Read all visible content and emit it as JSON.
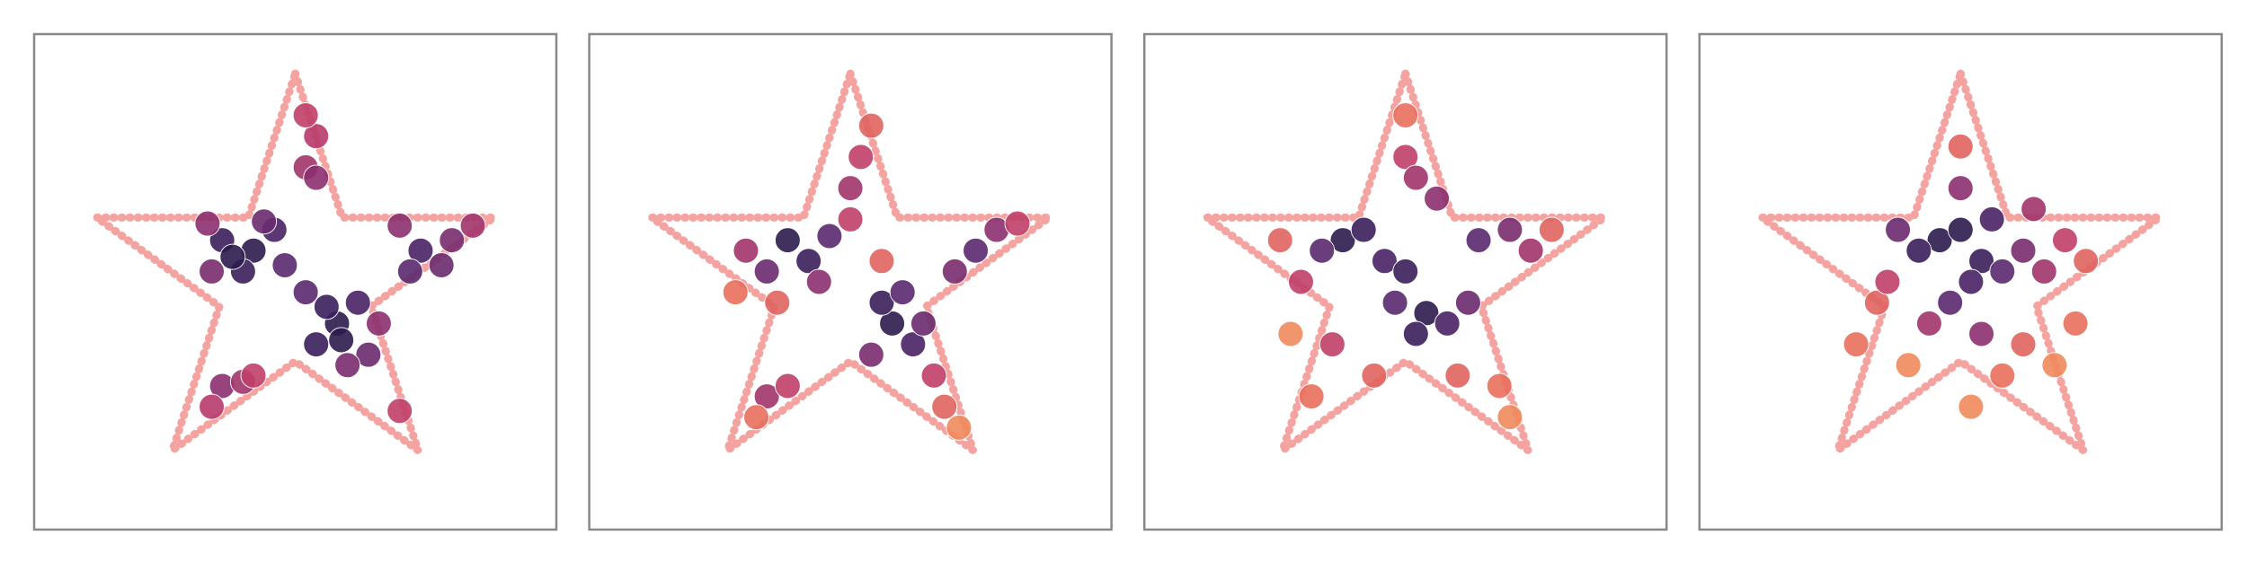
{
  "chart_data": [
    {
      "type": "scatter",
      "xlim": [
        -1.25,
        1.25
      ],
      "ylim": [
        -1.19,
        1.19
      ],
      "outline": {
        "color": "#f4a3a0",
        "x": [
          0,
          0.2245,
          0.951,
          0.3633,
          0.5878,
          0,
          -0.5878,
          -0.3633,
          -0.951,
          -0.2245
        ],
        "y": [
          1,
          0.309,
          0.309,
          -0.118,
          -0.809,
          -0.382,
          -0.809,
          -0.118,
          0.309,
          0.309
        ]
      },
      "x": [
        -0.35,
        -0.2,
        -0.1,
        -0.4,
        -0.25,
        -0.05,
        -0.42,
        -0.15,
        -0.3,
        0.2,
        0.1,
        0.3,
        0.35,
        0.05,
        0.25,
        0.15,
        0.4,
        0.22,
        0.6,
        0.75,
        0.55,
        0.85,
        0.7,
        0.5,
        -0.35,
        -0.25,
        -0.4,
        -0.2,
        0.05,
        0.1,
        0.05,
        0.1,
        0.5
      ],
      "y": [
        0.2,
        0.15,
        0.25,
        0.05,
        0.05,
        0.08,
        0.28,
        0.29,
        0.12,
        -0.2,
        -0.3,
        -0.1,
        -0.35,
        -0.05,
        -0.4,
        -0.12,
        -0.2,
        -0.28,
        0.15,
        0.2,
        0.05,
        0.27,
        0.08,
        0.27,
        -0.5,
        -0.48,
        -0.6,
        -0.45,
        0.55,
        0.7,
        0.8,
        0.5,
        -0.62
      ],
      "colors": [
        "#3a1f5c",
        "#2d1b4e",
        "#4a2366",
        "#7a2c6e",
        "#3a1f5c",
        "#5a2a6e",
        "#8c2f6f",
        "#6b2b6e",
        "#2d1b4e",
        "#2d1b4e",
        "#3a1f5c",
        "#4a2366",
        "#6b2b6e",
        "#5a2a6e",
        "#7a2c6e",
        "#3a1f5c",
        "#8c2f6f",
        "#2d1b4e",
        "#4a2366",
        "#7a2c6e",
        "#5a2a6e",
        "#a3356c",
        "#6b2b6e",
        "#8c2f6f",
        "#8c2f6f",
        "#a3356c",
        "#b83b6b",
        "#c0406a",
        "#a3356c",
        "#b83b6b",
        "#c0406a",
        "#8c2f6f",
        "#c0406a"
      ]
    },
    {
      "type": "scatter",
      "xlim": [
        -1.25,
        1.25
      ],
      "ylim": [
        -1.19,
        1.19
      ],
      "outline": {
        "color": "#f4a3a0",
        "x": [
          0,
          0.2245,
          0.951,
          0.3633,
          0.5878,
          0,
          -0.5878,
          -0.3633,
          -0.951,
          -0.2245
        ],
        "y": [
          1,
          0.309,
          0.309,
          -0.118,
          -0.809,
          -0.382,
          -0.809,
          -0.118,
          0.309,
          0.309
        ]
      },
      "x": [
        -0.3,
        -0.2,
        -0.1,
        -0.4,
        -0.5,
        -0.15,
        -0.35,
        0.0,
        0.2,
        0.15,
        0.3,
        0.25,
        0.1,
        0.35,
        0.4,
        0.6,
        0.7,
        0.5,
        0.8,
        0.05,
        0.0,
        0.1,
        -0.4,
        -0.3,
        -0.45,
        0.45,
        0.52,
        -0.55,
        0.15
      ],
      "y": [
        0.2,
        0.1,
        0.22,
        0.05,
        0.15,
        0.0,
        -0.1,
        0.3,
        -0.2,
        -0.1,
        -0.3,
        -0.05,
        -0.35,
        -0.2,
        -0.45,
        0.15,
        0.25,
        0.05,
        0.28,
        0.6,
        0.45,
        0.75,
        -0.55,
        -0.5,
        -0.65,
        -0.6,
        -0.7,
        -0.05,
        0.1
      ],
      "colors": [
        "#2d1b4e",
        "#3a1f5c",
        "#5a2a6e",
        "#6b2b6e",
        "#a3356c",
        "#8c2f6f",
        "#e06460",
        "#c0406a",
        "#2d1b4e",
        "#3a1f5c",
        "#4a2366",
        "#5a2a6e",
        "#7a2c6e",
        "#6b2b6e",
        "#c0406a",
        "#5a2a6e",
        "#8c2f6f",
        "#7a2c6e",
        "#c0406a",
        "#c0406a",
        "#a3356c",
        "#e06460",
        "#a3356c",
        "#c0406a",
        "#e8705d",
        "#e06460",
        "#f08a5d",
        "#e8705d",
        "#e06460"
      ]
    },
    {
      "type": "scatter",
      "xlim": [
        -1.25,
        1.25
      ],
      "ylim": [
        -1.19,
        1.19
      ],
      "outline": {
        "color": "#f4a3a0",
        "x": [
          0,
          0.2245,
          0.951,
          0.3633,
          0.5878,
          0,
          -0.5878,
          -0.3633,
          -0.951,
          -0.2245
        ],
        "y": [
          1,
          0.309,
          0.309,
          -0.118,
          -0.809,
          -0.382,
          -0.809,
          -0.118,
          0.309,
          0.309
        ]
      },
      "x": [
        -0.3,
        -0.2,
        -0.4,
        -0.1,
        0.0,
        0.1,
        0.05,
        -0.05,
        0.2,
        0.3,
        0.35,
        0.5,
        0.6,
        0.15,
        -0.5,
        -0.6,
        0.0,
        -0.35,
        -0.45,
        0.45,
        0.5,
        0.25,
        0.0,
        -0.15,
        0.05,
        0.7,
        -0.55
      ],
      "y": [
        0.2,
        0.25,
        0.15,
        0.1,
        0.05,
        -0.15,
        -0.25,
        -0.1,
        -0.2,
        -0.1,
        0.2,
        0.25,
        0.15,
        0.4,
        0.0,
        0.2,
        0.6,
        -0.3,
        -0.55,
        -0.5,
        -0.65,
        -0.45,
        0.8,
        -0.45,
        0.5,
        0.25,
        -0.25
      ],
      "colors": [
        "#2d1b4e",
        "#3a1f5c",
        "#5a2a6e",
        "#4a2366",
        "#3a1f5c",
        "#2d1b4e",
        "#3a1f5c",
        "#5a2a6e",
        "#4a2366",
        "#6b2b6e",
        "#5a2a6e",
        "#7a2c6e",
        "#a3356c",
        "#8c2f6f",
        "#c0406a",
        "#e06460",
        "#c0406a",
        "#c0406a",
        "#e8705d",
        "#e8705d",
        "#f08a5d",
        "#e06460",
        "#e8705d",
        "#e06460",
        "#a3356c",
        "#e06460",
        "#f08a5d"
      ]
    },
    {
      "type": "scatter",
      "xlim": [
        -1.25,
        1.25
      ],
      "ylim": [
        -1.19,
        1.19
      ],
      "outline": {
        "color": "#f4a3a0",
        "x": [
          0,
          0.2245,
          0.951,
          0.3633,
          0.5878,
          0,
          -0.5878,
          -0.3633,
          -0.951,
          -0.2245
        ],
        "y": [
          1,
          0.309,
          0.309,
          -0.118,
          -0.809,
          -0.382,
          -0.809,
          -0.118,
          0.309,
          0.309
        ]
      },
      "x": [
        -0.1,
        0.0,
        0.1,
        -0.2,
        0.05,
        -0.05,
        0.15,
        0.2,
        -0.3,
        0.3,
        0.0,
        0.1,
        -0.15,
        0.4,
        0.5,
        0.6,
        -0.4,
        -0.5,
        0.3,
        0.2,
        0.45,
        -0.25,
        0.0,
        0.05,
        -0.35,
        0.55,
        0.35
      ],
      "y": [
        0.2,
        0.25,
        0.1,
        0.15,
        0.0,
        -0.1,
        0.3,
        0.05,
        0.25,
        0.15,
        0.45,
        -0.25,
        -0.2,
        0.05,
        0.2,
        0.1,
        -0.1,
        -0.3,
        -0.3,
        -0.45,
        -0.4,
        -0.4,
        0.65,
        -0.6,
        0.0,
        -0.2,
        0.35
      ],
      "colors": [
        "#2d1b4e",
        "#2d1b4e",
        "#3a1f5c",
        "#3a1f5c",
        "#4a2366",
        "#5a2a6e",
        "#4a2366",
        "#5a2a6e",
        "#6b2b6e",
        "#7a2c6e",
        "#8c2f6f",
        "#8c2f6f",
        "#a3356c",
        "#a3356c",
        "#c0406a",
        "#e06460",
        "#e06460",
        "#e8705d",
        "#e06460",
        "#e8705d",
        "#f08a5d",
        "#f08a5d",
        "#e06460",
        "#f08a5d",
        "#c0406a",
        "#e8705d",
        "#a3356c"
      ]
    }
  ]
}
